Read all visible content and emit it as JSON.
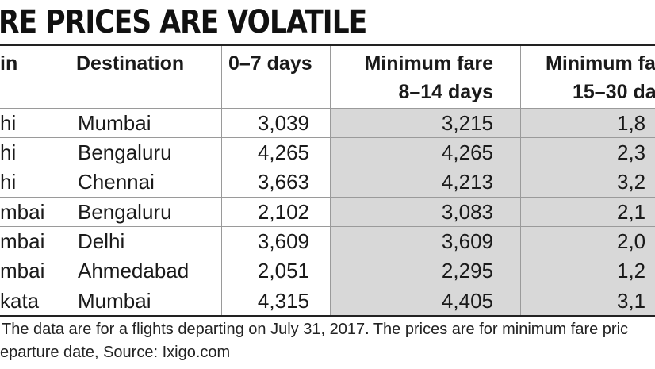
{
  "title": "RE PRICES ARE VOLATILE",
  "columns": {
    "origin": "in",
    "destination": "Destination",
    "days_0_7": "0–7 days",
    "min_fare_8_14_top": "Minimum fare",
    "min_fare_8_14_bottom": "8–14 days",
    "min_fare_15_30_top": "Minimum fa",
    "min_fare_15_30_bottom": "15–30 da"
  },
  "rows": [
    {
      "origin": "hi",
      "destination": "Mumbai",
      "d0_7": "3,039",
      "d8_14": "3,215",
      "d15_30": "1,8"
    },
    {
      "origin": "hi",
      "destination": "Bengaluru",
      "d0_7": "4,265",
      "d8_14": "4,265",
      "d15_30": "2,3"
    },
    {
      "origin": "hi",
      "destination": "Chennai",
      "d0_7": "3,663",
      "d8_14": "4,213",
      "d15_30": "3,2"
    },
    {
      "origin": "mbai",
      "destination": "Bengaluru",
      "d0_7": "2,102",
      "d8_14": "3,083",
      "d15_30": "2,1"
    },
    {
      "origin": "mbai",
      "destination": "Delhi",
      "d0_7": "3,609",
      "d8_14": "3,609",
      "d15_30": "2,0"
    },
    {
      "origin": "mbai",
      "destination": "Ahmedabad",
      "d0_7": "2,051",
      "d8_14": "2,295",
      "d15_30": "1,2"
    },
    {
      "origin": "kata",
      "destination": "Mumbai",
      "d0_7": "4,315",
      "d8_14": "4,405",
      "d15_30": "3,1"
    }
  ],
  "footnote": {
    "line1": "The data are for a flights departing on July 31, 2017. The prices are for minimum fare pric",
    "line2": "eparture date, Source: Ixigo.com"
  },
  "colors": {
    "shade": "#d8d8d8",
    "rule": "#222222",
    "grid": "#9a9a9a"
  }
}
